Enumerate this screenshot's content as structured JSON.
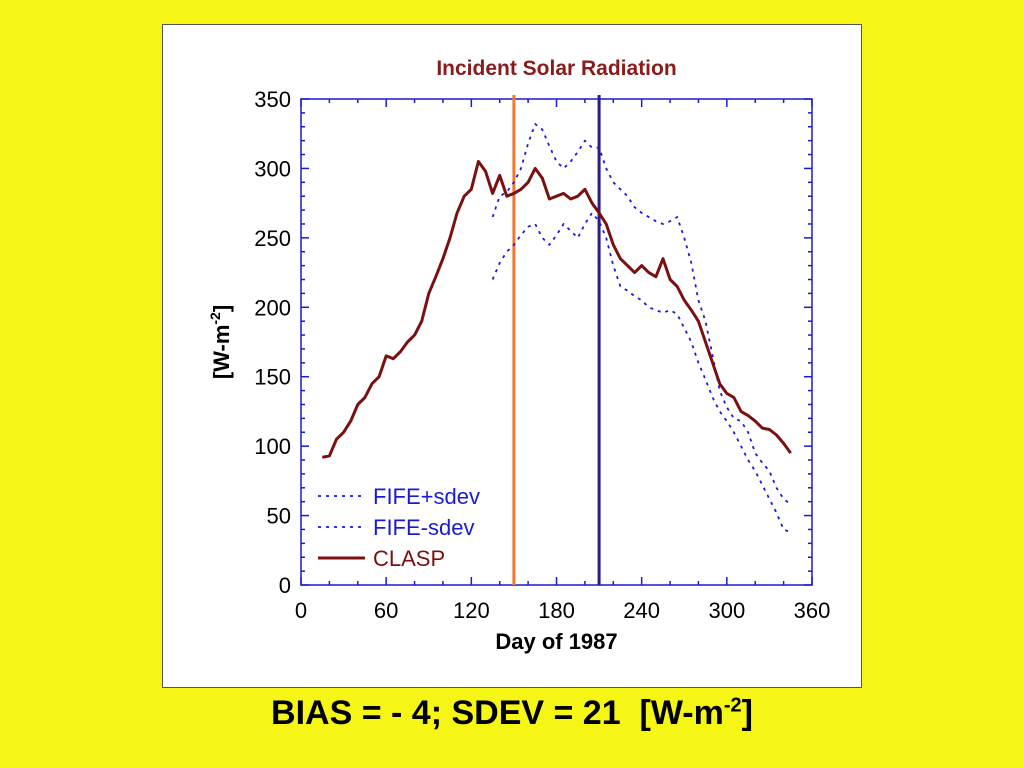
{
  "caption": {
    "text": "BIAS = - 4; SDEV = 21  [W-m",
    "exponent": "-2",
    "suffix": "]"
  },
  "colors": {
    "background": "#f5f516",
    "title": "#8b1a1a",
    "axis": "#1a1ad6",
    "clasp": "#7a1010",
    "fife": "#1a1ad6",
    "orange_line": "#f07830",
    "purple_line": "#2a1a8a"
  },
  "chart_data": {
    "type": "line",
    "title": "Incident Solar Radiation",
    "xlabel": "Day of 1987",
    "ylabel": "[W-m-2]",
    "ylabel_base": "[W-m",
    "ylabel_exp": "-2",
    "ylabel_suffix": "]",
    "xlim": [
      0,
      360
    ],
    "ylim": [
      0,
      350
    ],
    "xticks": [
      0,
      60,
      120,
      180,
      240,
      300,
      360
    ],
    "yticks": [
      0,
      50,
      100,
      150,
      200,
      250,
      300,
      350
    ],
    "legend_position": "bottom-left",
    "vertical_lines": [
      {
        "x": 150,
        "color": "#f07830"
      },
      {
        "x": 210,
        "color": "#2a1a8a"
      }
    ],
    "series": [
      {
        "name": "FIFE+sdev",
        "style": "dotted",
        "color": "#1a1ad6",
        "points": [
          [
            135,
            265
          ],
          [
            140,
            280
          ],
          [
            145,
            283
          ],
          [
            150,
            290
          ],
          [
            155,
            300
          ],
          [
            160,
            318
          ],
          [
            165,
            332
          ],
          [
            170,
            328
          ],
          [
            175,
            316
          ],
          [
            180,
            305
          ],
          [
            185,
            300
          ],
          [
            190,
            305
          ],
          [
            195,
            312
          ],
          [
            200,
            320
          ],
          [
            205,
            315
          ],
          [
            210,
            315
          ],
          [
            215,
            300
          ],
          [
            220,
            290
          ],
          [
            225,
            285
          ],
          [
            230,
            280
          ],
          [
            235,
            272
          ],
          [
            240,
            268
          ],
          [
            245,
            265
          ],
          [
            250,
            262
          ],
          [
            255,
            260
          ],
          [
            260,
            262
          ],
          [
            265,
            265
          ],
          [
            270,
            250
          ],
          [
            275,
            232
          ],
          [
            280,
            205
          ],
          [
            285,
            190
          ],
          [
            290,
            165
          ],
          [
            295,
            140
          ],
          [
            300,
            128
          ],
          [
            305,
            120
          ],
          [
            310,
            118
          ],
          [
            315,
            110
          ],
          [
            320,
            95
          ],
          [
            325,
            88
          ],
          [
            330,
            82
          ],
          [
            335,
            70
          ],
          [
            340,
            62
          ],
          [
            345,
            58
          ]
        ]
      },
      {
        "name": "FIFE-sdev",
        "style": "dotted",
        "color": "#1a1ad6",
        "points": [
          [
            135,
            220
          ],
          [
            140,
            232
          ],
          [
            145,
            240
          ],
          [
            150,
            245
          ],
          [
            155,
            252
          ],
          [
            160,
            258
          ],
          [
            165,
            260
          ],
          [
            170,
            250
          ],
          [
            175,
            245
          ],
          [
            180,
            252
          ],
          [
            185,
            260
          ],
          [
            190,
            255
          ],
          [
            195,
            250
          ],
          [
            200,
            260
          ],
          [
            205,
            268
          ],
          [
            210,
            262
          ],
          [
            215,
            250
          ],
          [
            220,
            230
          ],
          [
            225,
            215
          ],
          [
            230,
            212
          ],
          [
            235,
            208
          ],
          [
            240,
            205
          ],
          [
            245,
            200
          ],
          [
            250,
            198
          ],
          [
            255,
            196
          ],
          [
            260,
            198
          ],
          [
            265,
            195
          ],
          [
            270,
            185
          ],
          [
            275,
            175
          ],
          [
            280,
            160
          ],
          [
            285,
            148
          ],
          [
            290,
            135
          ],
          [
            295,
            125
          ],
          [
            300,
            118
          ],
          [
            305,
            110
          ],
          [
            310,
            100
          ],
          [
            315,
            90
          ],
          [
            320,
            82
          ],
          [
            325,
            72
          ],
          [
            330,
            62
          ],
          [
            335,
            52
          ],
          [
            340,
            40
          ],
          [
            345,
            38
          ]
        ]
      },
      {
        "name": "CLASP",
        "style": "solid",
        "color": "#7a1010",
        "points": [
          [
            15,
            92
          ],
          [
            20,
            93
          ],
          [
            25,
            105
          ],
          [
            30,
            110
          ],
          [
            35,
            118
          ],
          [
            40,
            130
          ],
          [
            45,
            135
          ],
          [
            50,
            145
          ],
          [
            55,
            150
          ],
          [
            60,
            165
          ],
          [
            65,
            163
          ],
          [
            70,
            168
          ],
          [
            75,
            175
          ],
          [
            80,
            180
          ],
          [
            85,
            190
          ],
          [
            90,
            210
          ],
          [
            95,
            222
          ],
          [
            100,
            235
          ],
          [
            105,
            250
          ],
          [
            110,
            268
          ],
          [
            115,
            280
          ],
          [
            120,
            285
          ],
          [
            125,
            305
          ],
          [
            130,
            298
          ],
          [
            135,
            282
          ],
          [
            140,
            295
          ],
          [
            145,
            280
          ],
          [
            150,
            282
          ],
          [
            155,
            285
          ],
          [
            160,
            290
          ],
          [
            165,
            300
          ],
          [
            170,
            293
          ],
          [
            175,
            278
          ],
          [
            180,
            280
          ],
          [
            185,
            282
          ],
          [
            190,
            278
          ],
          [
            195,
            280
          ],
          [
            200,
            285
          ],
          [
            205,
            275
          ],
          [
            210,
            268
          ],
          [
            215,
            260
          ],
          [
            220,
            245
          ],
          [
            225,
            235
          ],
          [
            230,
            230
          ],
          [
            235,
            225
          ],
          [
            240,
            230
          ],
          [
            245,
            225
          ],
          [
            250,
            222
          ],
          [
            255,
            235
          ],
          [
            260,
            220
          ],
          [
            265,
            215
          ],
          [
            270,
            205
          ],
          [
            275,
            198
          ],
          [
            280,
            190
          ],
          [
            285,
            175
          ],
          [
            290,
            160
          ],
          [
            295,
            145
          ],
          [
            300,
            138
          ],
          [
            305,
            135
          ],
          [
            310,
            125
          ],
          [
            315,
            122
          ],
          [
            320,
            118
          ],
          [
            325,
            113
          ],
          [
            330,
            112
          ],
          [
            335,
            108
          ],
          [
            340,
            102
          ],
          [
            345,
            95
          ]
        ]
      }
    ]
  }
}
